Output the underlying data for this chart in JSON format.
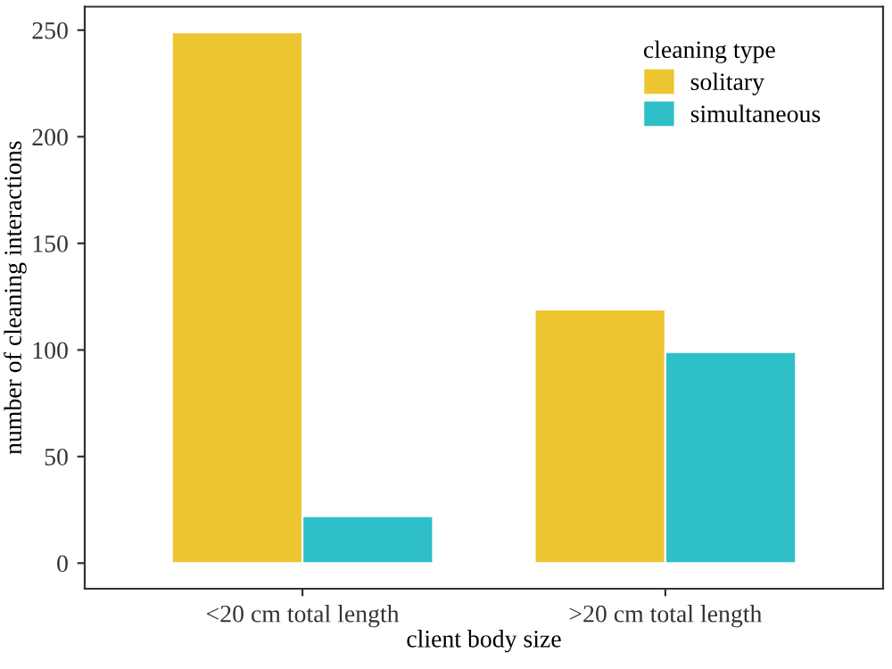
{
  "chart_data": {
    "type": "bar",
    "xlabel": "client body size",
    "ylabel": "number of cleaning interactions",
    "legend_title": "cleaning type",
    "categories": [
      "<20 cm total length",
      ">20 cm total length"
    ],
    "series": [
      {
        "name": "solitary",
        "color": "#ecc530",
        "values": [
          249,
          119
        ]
      },
      {
        "name": "simultaneous",
        "color": "#2fbfc8",
        "values": [
          22,
          99
        ]
      }
    ],
    "ylim": [
      -12,
      261
    ],
    "yticks": [
      0,
      50,
      100,
      150,
      200,
      250
    ],
    "grid": false,
    "legend": "top right"
  }
}
